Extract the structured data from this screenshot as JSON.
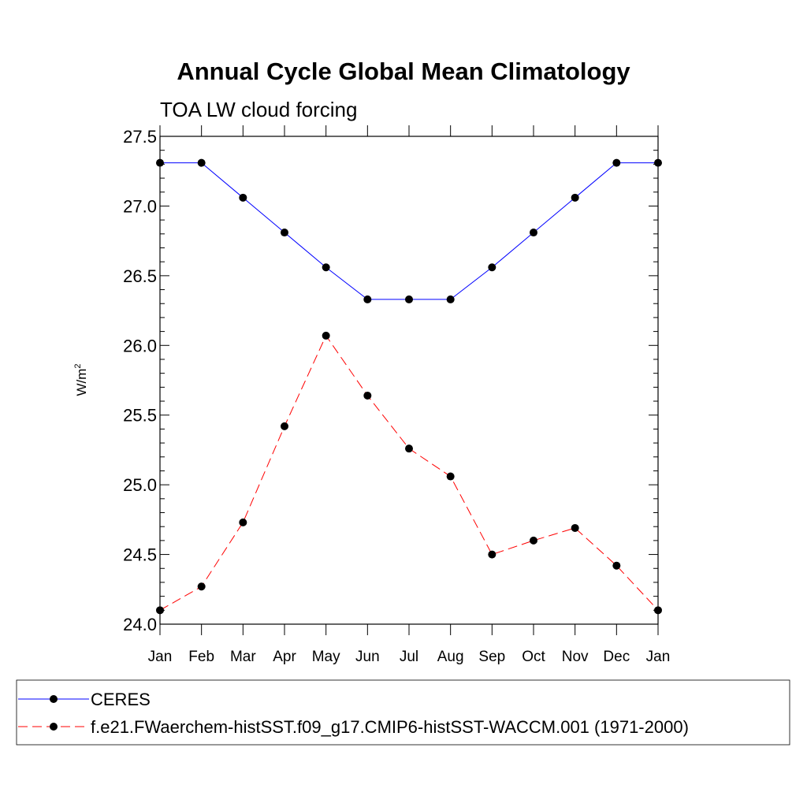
{
  "chart_data": {
    "type": "line",
    "title": "Annual Cycle Global Mean Climatology",
    "subtitle": "TOA LW cloud forcing",
    "ylabel": "W/m",
    "ylabel_superscript": "2",
    "xlabel": "",
    "categories": [
      "Jan",
      "Feb",
      "Mar",
      "Apr",
      "May",
      "Jun",
      "Jul",
      "Aug",
      "Sep",
      "Oct",
      "Nov",
      "Dec",
      "Jan"
    ],
    "ylim": [
      24.0,
      27.5
    ],
    "yticks": [
      "24.0",
      "24.5",
      "25.0",
      "25.5",
      "26.0",
      "26.5",
      "27.0",
      "27.5"
    ],
    "legend_position": "bottom",
    "grid": false,
    "series": [
      {
        "name": "CERES",
        "color": "#0000ff",
        "dash": "solid",
        "values": [
          27.31,
          27.31,
          27.06,
          26.81,
          26.56,
          26.33,
          26.33,
          26.33,
          26.56,
          26.81,
          27.06,
          27.31,
          27.31
        ]
      },
      {
        "name": "f.e21.FWaerchem-histSST.f09_g17.CMIP6-histSST-WACCM.001 (1971-2000)",
        "color": "#ff0000",
        "dash": "dashed",
        "values": [
          24.1,
          24.27,
          24.73,
          25.42,
          26.07,
          25.64,
          25.26,
          25.06,
          24.5,
          24.6,
          24.69,
          24.42,
          24.1
        ]
      }
    ]
  }
}
